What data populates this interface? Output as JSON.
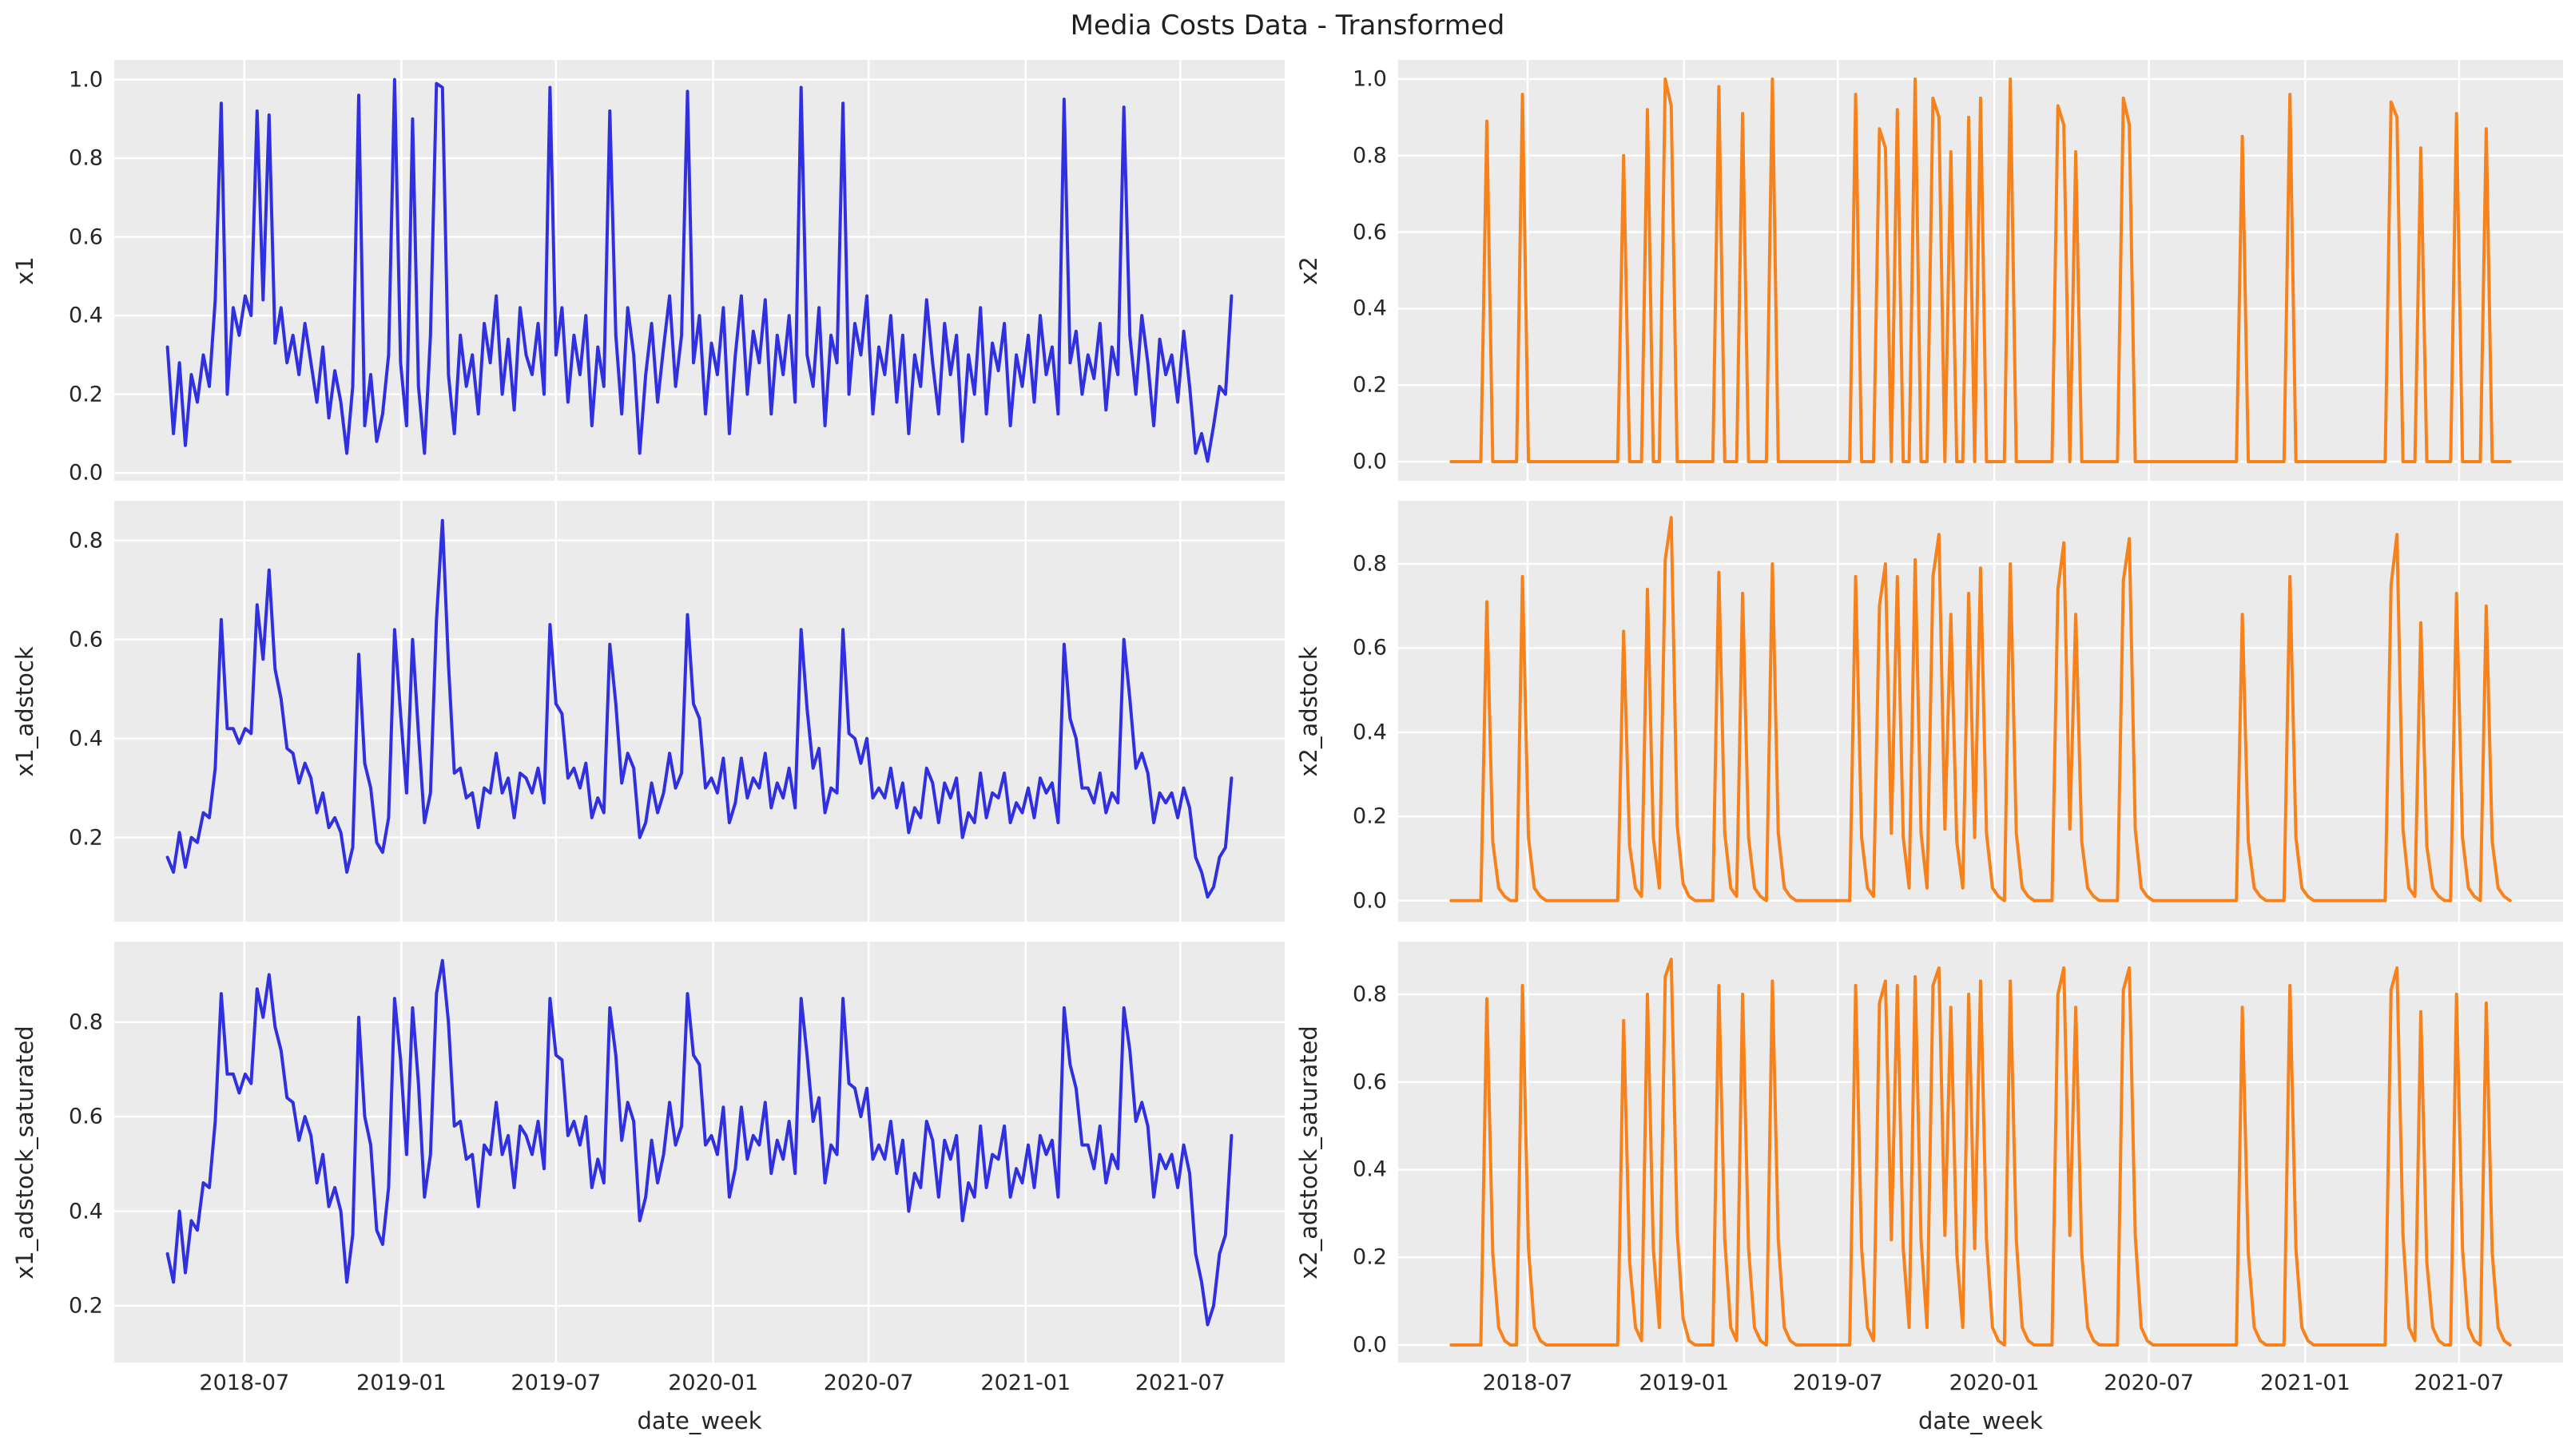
{
  "colors": {
    "x1_line": "#3030e1",
    "x2_line": "#f7821c",
    "axes_background": "#ebebeb",
    "gridline": "#ffffff",
    "text": "#262626",
    "figure_background": "#ffffff"
  },
  "chart_data": {
    "type": "line",
    "title": "Media Costs Data - Transformed",
    "xlabel": "date_week",
    "n_weeks": 179,
    "x_ticks": {
      "labels": [
        "2018-07",
        "2019-01",
        "2019-07",
        "2020-01",
        "2020-07",
        "2021-01",
        "2021-07"
      ],
      "positions_weeks": [
        12.86,
        39.14,
        65.0,
        91.29,
        117.29,
        143.57,
        169.43
      ]
    },
    "xlim_weeks": [
      -8.9,
      186.9
    ],
    "grid": true,
    "legend": false,
    "subplots": [
      {
        "row": 0,
        "col": 0,
        "ylabel": "x1",
        "series": "x1",
        "color": "#3030e1",
        "yticks": [
          0.0,
          0.2,
          0.4,
          0.6,
          0.8,
          1.0
        ],
        "ylim": [
          -0.02,
          1.05
        ]
      },
      {
        "row": 0,
        "col": 1,
        "ylabel": "x2",
        "series": "x2",
        "color": "#f7821c",
        "yticks": [
          0.0,
          0.2,
          0.4,
          0.6,
          0.8,
          1.0
        ],
        "ylim": [
          -0.05,
          1.05
        ]
      },
      {
        "row": 1,
        "col": 0,
        "ylabel": "x1_adstock",
        "series": "x1_adstock",
        "color": "#3030e1",
        "yticks": [
          0.2,
          0.4,
          0.6,
          0.8
        ],
        "ylim": [
          0.03,
          0.88
        ]
      },
      {
        "row": 1,
        "col": 1,
        "ylabel": "x2_adstock",
        "series": "x2_adstock",
        "color": "#f7821c",
        "yticks": [
          0.0,
          0.2,
          0.4,
          0.6,
          0.8
        ],
        "ylim": [
          -0.05,
          0.95
        ]
      },
      {
        "row": 2,
        "col": 0,
        "ylabel": "x1_adstock_saturated",
        "series": "x1_adstock_saturated",
        "color": "#3030e1",
        "yticks": [
          0.2,
          0.4,
          0.6,
          0.8
        ],
        "ylim": [
          0.08,
          0.97
        ]
      },
      {
        "row": 2,
        "col": 1,
        "ylabel": "x2_adstock_saturated",
        "series": "x2_adstock_saturated",
        "color": "#f7821c",
        "yticks": [
          0.0,
          0.2,
          0.4,
          0.6,
          0.8
        ],
        "ylim": [
          -0.04,
          0.92
        ]
      }
    ],
    "series": {
      "x1": [
        0.32,
        0.1,
        0.28,
        0.07,
        0.25,
        0.18,
        0.3,
        0.22,
        0.44,
        0.94,
        0.2,
        0.42,
        0.35,
        0.45,
        0.4,
        0.92,
        0.44,
        0.91,
        0.33,
        0.42,
        0.28,
        0.35,
        0.25,
        0.38,
        0.28,
        0.18,
        0.32,
        0.14,
        0.26,
        0.18,
        0.05,
        0.22,
        0.96,
        0.12,
        0.25,
        0.08,
        0.15,
        0.3,
        1.0,
        0.28,
        0.12,
        0.9,
        0.22,
        0.05,
        0.35,
        0.99,
        0.98,
        0.25,
        0.1,
        0.35,
        0.22,
        0.3,
        0.15,
        0.38,
        0.28,
        0.45,
        0.2,
        0.34,
        0.16,
        0.42,
        0.3,
        0.25,
        0.38,
        0.2,
        0.98,
        0.3,
        0.42,
        0.18,
        0.35,
        0.25,
        0.4,
        0.12,
        0.32,
        0.22,
        0.92,
        0.35,
        0.15,
        0.42,
        0.3,
        0.05,
        0.25,
        0.38,
        0.18,
        0.32,
        0.45,
        0.22,
        0.35,
        0.97,
        0.28,
        0.4,
        0.15,
        0.33,
        0.25,
        0.42,
        0.1,
        0.3,
        0.45,
        0.2,
        0.36,
        0.28,
        0.44,
        0.15,
        0.35,
        0.25,
        0.4,
        0.18,
        0.98,
        0.3,
        0.22,
        0.42,
        0.12,
        0.35,
        0.28,
        0.94,
        0.2,
        0.38,
        0.3,
        0.45,
        0.15,
        0.32,
        0.25,
        0.4,
        0.18,
        0.35,
        0.1,
        0.3,
        0.22,
        0.44,
        0.28,
        0.15,
        0.38,
        0.25,
        0.35,
        0.08,
        0.3,
        0.2,
        0.42,
        0.15,
        0.33,
        0.26,
        0.38,
        0.12,
        0.3,
        0.22,
        0.35,
        0.18,
        0.4,
        0.25,
        0.32,
        0.15,
        0.95,
        0.28,
        0.36,
        0.2,
        0.3,
        0.24,
        0.38,
        0.16,
        0.32,
        0.25,
        0.93,
        0.35,
        0.2,
        0.4,
        0.28,
        0.12,
        0.34,
        0.25,
        0.3,
        0.18,
        0.36,
        0.22,
        0.05,
        0.1,
        0.03,
        0.12,
        0.22,
        0.2,
        0.45
      ],
      "x1_adstock": [
        0.16,
        0.13,
        0.21,
        0.14,
        0.2,
        0.19,
        0.25,
        0.24,
        0.34,
        0.64,
        0.42,
        0.42,
        0.39,
        0.42,
        0.41,
        0.67,
        0.56,
        0.74,
        0.54,
        0.48,
        0.38,
        0.37,
        0.31,
        0.35,
        0.32,
        0.25,
        0.29,
        0.22,
        0.24,
        0.21,
        0.13,
        0.18,
        0.57,
        0.35,
        0.3,
        0.19,
        0.17,
        0.24,
        0.62,
        0.45,
        0.29,
        0.6,
        0.41,
        0.23,
        0.29,
        0.64,
        0.84,
        0.55,
        0.33,
        0.34,
        0.28,
        0.29,
        0.22,
        0.3,
        0.29,
        0.37,
        0.29,
        0.32,
        0.24,
        0.33,
        0.32,
        0.29,
        0.34,
        0.27,
        0.63,
        0.47,
        0.45,
        0.32,
        0.34,
        0.3,
        0.35,
        0.24,
        0.28,
        0.25,
        0.59,
        0.47,
        0.31,
        0.37,
        0.34,
        0.2,
        0.23,
        0.31,
        0.25,
        0.29,
        0.37,
        0.3,
        0.33,
        0.65,
        0.47,
        0.44,
        0.3,
        0.32,
        0.29,
        0.36,
        0.23,
        0.27,
        0.36,
        0.28,
        0.32,
        0.3,
        0.37,
        0.26,
        0.31,
        0.28,
        0.34,
        0.26,
        0.62,
        0.46,
        0.34,
        0.38,
        0.25,
        0.3,
        0.29,
        0.62,
        0.41,
        0.4,
        0.35,
        0.4,
        0.28,
        0.3,
        0.28,
        0.34,
        0.26,
        0.31,
        0.21,
        0.26,
        0.24,
        0.34,
        0.31,
        0.23,
        0.31,
        0.28,
        0.32,
        0.2,
        0.25,
        0.23,
        0.33,
        0.24,
        0.29,
        0.28,
        0.33,
        0.23,
        0.27,
        0.25,
        0.3,
        0.24,
        0.32,
        0.29,
        0.31,
        0.23,
        0.59,
        0.44,
        0.4,
        0.3,
        0.3,
        0.27,
        0.33,
        0.25,
        0.29,
        0.27,
        0.6,
        0.48,
        0.34,
        0.37,
        0.33,
        0.23,
        0.29,
        0.27,
        0.29,
        0.24,
        0.3,
        0.26,
        0.16,
        0.13,
        0.08,
        0.1,
        0.16,
        0.18,
        0.32
      ],
      "x1_adstock_saturated": [
        0.31,
        0.25,
        0.4,
        0.27,
        0.38,
        0.36,
        0.46,
        0.45,
        0.59,
        0.86,
        0.69,
        0.69,
        0.65,
        0.69,
        0.67,
        0.87,
        0.81,
        0.9,
        0.79,
        0.74,
        0.64,
        0.63,
        0.55,
        0.6,
        0.56,
        0.46,
        0.52,
        0.41,
        0.45,
        0.4,
        0.25,
        0.35,
        0.81,
        0.6,
        0.54,
        0.36,
        0.33,
        0.45,
        0.85,
        0.72,
        0.52,
        0.83,
        0.67,
        0.43,
        0.52,
        0.86,
        0.93,
        0.8,
        0.58,
        0.59,
        0.51,
        0.52,
        0.41,
        0.54,
        0.52,
        0.63,
        0.52,
        0.56,
        0.45,
        0.58,
        0.56,
        0.52,
        0.59,
        0.49,
        0.85,
        0.73,
        0.72,
        0.56,
        0.59,
        0.54,
        0.6,
        0.45,
        0.51,
        0.46,
        0.83,
        0.73,
        0.55,
        0.63,
        0.59,
        0.38,
        0.43,
        0.55,
        0.46,
        0.52,
        0.63,
        0.54,
        0.58,
        0.86,
        0.73,
        0.71,
        0.54,
        0.56,
        0.52,
        0.62,
        0.43,
        0.49,
        0.62,
        0.51,
        0.56,
        0.54,
        0.63,
        0.48,
        0.55,
        0.51,
        0.59,
        0.48,
        0.85,
        0.73,
        0.59,
        0.64,
        0.46,
        0.54,
        0.52,
        0.85,
        0.67,
        0.66,
        0.6,
        0.66,
        0.51,
        0.54,
        0.51,
        0.59,
        0.48,
        0.55,
        0.4,
        0.48,
        0.45,
        0.59,
        0.55,
        0.43,
        0.55,
        0.51,
        0.56,
        0.38,
        0.46,
        0.43,
        0.58,
        0.45,
        0.52,
        0.51,
        0.58,
        0.43,
        0.49,
        0.46,
        0.54,
        0.45,
        0.56,
        0.52,
        0.55,
        0.43,
        0.83,
        0.71,
        0.66,
        0.54,
        0.54,
        0.49,
        0.58,
        0.46,
        0.52,
        0.49,
        0.83,
        0.74,
        0.59,
        0.63,
        0.58,
        0.43,
        0.52,
        0.49,
        0.52,
        0.45,
        0.54,
        0.48,
        0.31,
        0.25,
        0.16,
        0.2,
        0.31,
        0.35,
        0.56
      ],
      "x2": [
        0,
        0,
        0,
        0,
        0,
        0,
        0.89,
        0,
        0,
        0,
        0,
        0,
        0.96,
        0,
        0,
        0,
        0,
        0,
        0,
        0,
        0,
        0,
        0,
        0,
        0,
        0,
        0,
        0,
        0,
        0.8,
        0,
        0,
        0,
        0.92,
        0,
        0,
        1.0,
        0.93,
        0,
        0,
        0,
        0,
        0,
        0,
        0,
        0.98,
        0,
        0,
        0,
        0.91,
        0,
        0,
        0,
        0,
        1.0,
        0,
        0,
        0,
        0,
        0,
        0,
        0,
        0,
        0,
        0,
        0,
        0,
        0,
        0.96,
        0,
        0,
        0,
        0.87,
        0.82,
        0,
        0.92,
        0,
        0,
        1.0,
        0,
        0,
        0.95,
        0.9,
        0,
        0.81,
        0,
        0,
        0.9,
        0,
        0.95,
        0,
        0,
        0,
        0,
        1.0,
        0,
        0,
        0,
        0,
        0,
        0,
        0,
        0.93,
        0.88,
        0,
        0.81,
        0,
        0,
        0,
        0,
        0,
        0,
        0,
        0.95,
        0.88,
        0,
        0,
        0,
        0,
        0,
        0,
        0,
        0,
        0,
        0,
        0,
        0,
        0,
        0,
        0,
        0,
        0,
        0,
        0.85,
        0,
        0,
        0,
        0,
        0,
        0,
        0,
        0.96,
        0,
        0,
        0,
        0,
        0,
        0,
        0,
        0,
        0,
        0,
        0,
        0,
        0,
        0,
        0,
        0,
        0.94,
        0.9,
        0,
        0,
        0,
        0.82,
        0,
        0,
        0,
        0,
        0,
        0.91,
        0,
        0,
        0,
        0,
        0.87,
        0,
        0,
        0,
        0
      ],
      "x2_adstock": [
        0,
        0,
        0,
        0,
        0,
        0,
        0.71,
        0.14,
        0.03,
        0.01,
        0,
        0,
        0.77,
        0.15,
        0.03,
        0.01,
        0,
        0,
        0,
        0,
        0,
        0,
        0,
        0,
        0,
        0,
        0,
        0,
        0,
        0.64,
        0.13,
        0.03,
        0.01,
        0.74,
        0.15,
        0.03,
        0.81,
        0.91,
        0.18,
        0.04,
        0.01,
        0,
        0,
        0,
        0,
        0.78,
        0.16,
        0.03,
        0.01,
        0.73,
        0.15,
        0.03,
        0.01,
        0,
        0.8,
        0.16,
        0.03,
        0.01,
        0,
        0,
        0,
        0,
        0,
        0,
        0,
        0,
        0,
        0,
        0.77,
        0.15,
        0.03,
        0.01,
        0.7,
        0.8,
        0.16,
        0.77,
        0.15,
        0.03,
        0.81,
        0.16,
        0.03,
        0.77,
        0.87,
        0.17,
        0.68,
        0.14,
        0.03,
        0.73,
        0.15,
        0.79,
        0.16,
        0.03,
        0.01,
        0,
        0.8,
        0.16,
        0.03,
        0.01,
        0,
        0,
        0,
        0,
        0.74,
        0.85,
        0.17,
        0.68,
        0.14,
        0.03,
        0.01,
        0,
        0,
        0,
        0,
        0.76,
        0.86,
        0.17,
        0.03,
        0.01,
        0,
        0,
        0,
        0,
        0,
        0,
        0,
        0,
        0,
        0,
        0,
        0,
        0,
        0,
        0,
        0.68,
        0.14,
        0.03,
        0.01,
        0,
        0,
        0,
        0,
        0.77,
        0.15,
        0.03,
        0.01,
        0,
        0,
        0,
        0,
        0,
        0,
        0,
        0,
        0,
        0,
        0,
        0,
        0,
        0.75,
        0.87,
        0.17,
        0.03,
        0.01,
        0.66,
        0.13,
        0.03,
        0.01,
        0,
        0,
        0.73,
        0.15,
        0.03,
        0.01,
        0,
        0.7,
        0.14,
        0.03,
        0.01,
        0
      ],
      "x2_adstock_saturated": [
        0,
        0,
        0,
        0,
        0,
        0,
        0.79,
        0.21,
        0.04,
        0.01,
        0,
        0,
        0.82,
        0.22,
        0.04,
        0.01,
        0,
        0,
        0,
        0,
        0,
        0,
        0,
        0,
        0,
        0,
        0,
        0,
        0,
        0.74,
        0.19,
        0.04,
        0.01,
        0.8,
        0.22,
        0.04,
        0.84,
        0.88,
        0.26,
        0.06,
        0.01,
        0,
        0,
        0,
        0,
        0.82,
        0.24,
        0.04,
        0.01,
        0.8,
        0.22,
        0.04,
        0.01,
        0,
        0.83,
        0.24,
        0.04,
        0.01,
        0,
        0,
        0,
        0,
        0,
        0,
        0,
        0,
        0,
        0,
        0.82,
        0.22,
        0.04,
        0.01,
        0.78,
        0.83,
        0.24,
        0.82,
        0.22,
        0.04,
        0.84,
        0.24,
        0.04,
        0.82,
        0.86,
        0.25,
        0.77,
        0.21,
        0.04,
        0.8,
        0.22,
        0.83,
        0.24,
        0.04,
        0.01,
        0,
        0.83,
        0.24,
        0.04,
        0.01,
        0,
        0,
        0,
        0,
        0.8,
        0.86,
        0.25,
        0.77,
        0.21,
        0.04,
        0.01,
        0,
        0,
        0,
        0,
        0.81,
        0.86,
        0.25,
        0.04,
        0.01,
        0,
        0,
        0,
        0,
        0,
        0,
        0,
        0,
        0,
        0,
        0,
        0,
        0,
        0,
        0,
        0.77,
        0.21,
        0.04,
        0.01,
        0,
        0,
        0,
        0,
        0.82,
        0.22,
        0.04,
        0.01,
        0,
        0,
        0,
        0,
        0,
        0,
        0,
        0,
        0,
        0,
        0,
        0,
        0,
        0.81,
        0.86,
        0.25,
        0.04,
        0.01,
        0.76,
        0.19,
        0.04,
        0.01,
        0,
        0,
        0.8,
        0.22,
        0.04,
        0.01,
        0,
        0.78,
        0.21,
        0.04,
        0.01,
        0
      ]
    }
  }
}
